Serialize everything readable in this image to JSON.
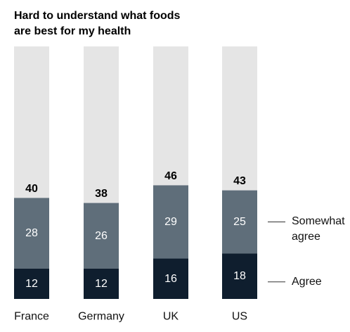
{
  "chart_data": {
    "type": "bar",
    "stacked": true,
    "title_lines": [
      "Hard to understand what foods",
      "are best for my health"
    ],
    "categories": [
      "France",
      "Germany",
      "UK",
      "US"
    ],
    "totals": [
      40,
      38,
      46,
      43
    ],
    "series": [
      {
        "name": "Agree",
        "values": [
          12,
          12,
          16,
          18
        ],
        "color": "#0f1e2e"
      },
      {
        "name": "Somewhat agree",
        "values": [
          28,
          26,
          29,
          25
        ],
        "color": "#5f6e7a"
      }
    ],
    "background_color": "#e5e5e5",
    "ylim": [
      0,
      100
    ],
    "legend": {
      "placement": "right",
      "somewhat_agree_lines": [
        "Somewhat",
        "agree"
      ],
      "agree_lines": [
        "Agree"
      ]
    }
  }
}
